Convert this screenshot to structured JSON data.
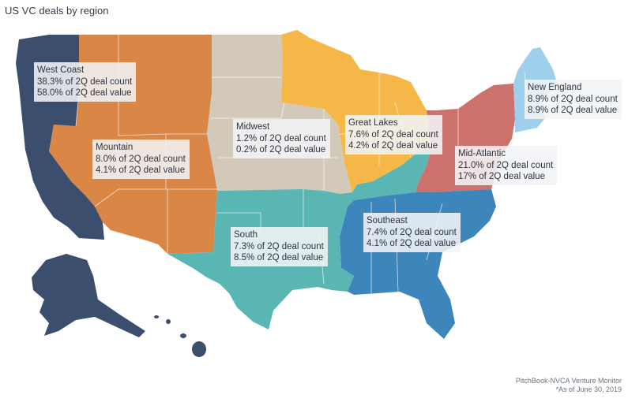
{
  "title": "US VC deals by region",
  "colors": {
    "west_coast": "#3b4e6e",
    "mountain": "#da8647",
    "midwest": "#d3c9bb",
    "great_lakes": "#f4b748",
    "south": "#59b6b3",
    "southeast": "#3d86bc",
    "mid_atlantic": "#cc716b",
    "new_england": "#9ecfec"
  },
  "regions": [
    {
      "name": "West Coast",
      "count": "38.3% of 2Q deal count",
      "value": "58.0% of 2Q deal value"
    },
    {
      "name": "Mountain",
      "count": "8.0% of 2Q deal count",
      "value": "4.1% of 2Q deal value"
    },
    {
      "name": "Midwest",
      "count": "1.2% of 2Q deal count",
      "value": "0.2% of 2Q deal value"
    },
    {
      "name": "Great Lakes",
      "count": "7.6% of 2Q deal count",
      "value": "4.2% of 2Q deal value"
    },
    {
      "name": "New England",
      "count": "8.9% of 2Q deal count",
      "value": "8.9% of 2Q deal value"
    },
    {
      "name": "Mid-Atlantic",
      "count": "21.0% of 2Q deal count",
      "value": "17% of 2Q deal value"
    },
    {
      "name": "South",
      "count": "7.3% of 2Q deal count",
      "value": "8.5% of 2Q deal value"
    },
    {
      "name": "Southeast",
      "count": "7.4% of 2Q deal count",
      "value": "4.1% of 2Q deal value"
    }
  ],
  "source": {
    "line1": "PitchBook-NVCA Venture Monitor",
    "line2": "*As of June 30, 2019"
  }
}
